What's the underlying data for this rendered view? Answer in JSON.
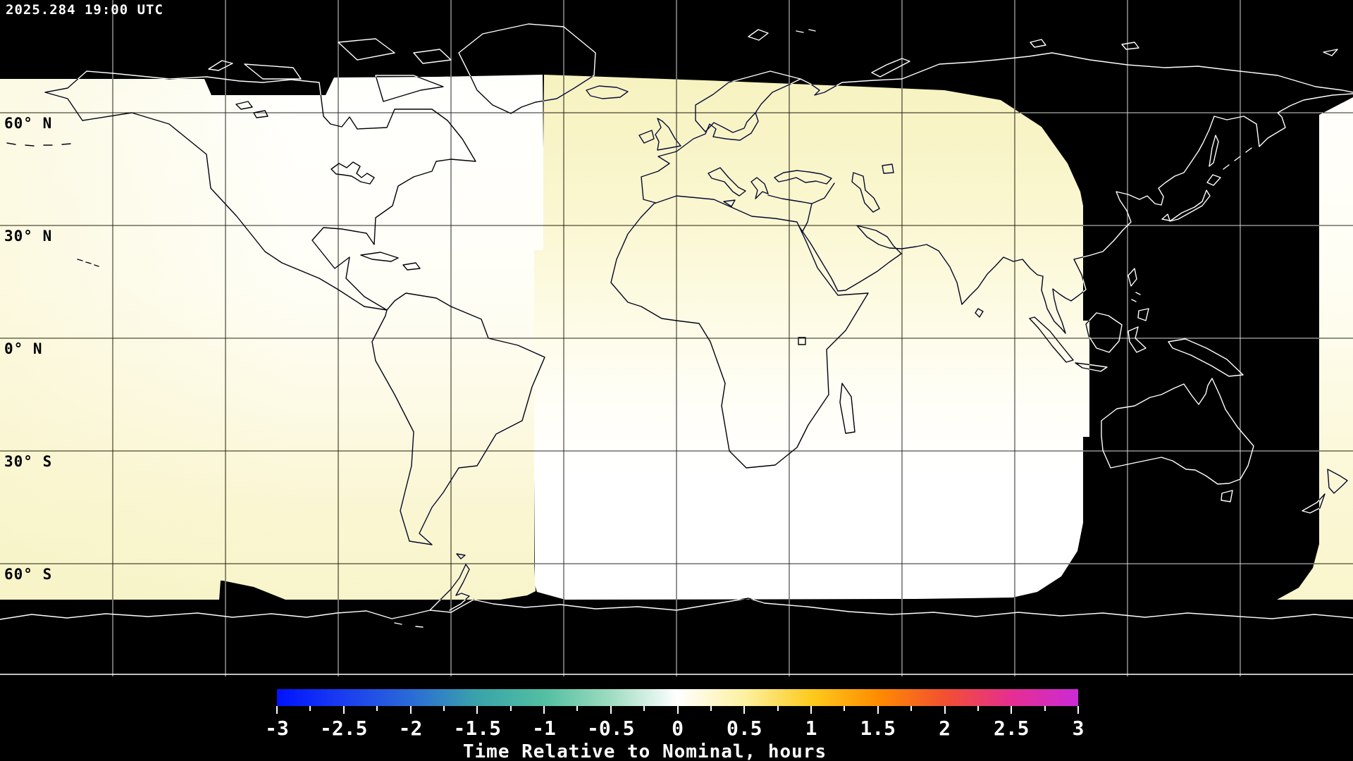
{
  "header": {
    "timestamp": "2025.284 19:00 UTC"
  },
  "map": {
    "latitude_labels": [
      "60° N",
      "30° N",
      "0° N",
      "30° S",
      "60° S"
    ],
    "latitude_values_deg": [
      60,
      30,
      0,
      -30,
      -60
    ],
    "grid_interval_deg": 30,
    "no_data_color": "#000000",
    "nominal_color": "#ffffff",
    "early_swath_tint": "#f7f3c4"
  },
  "colorbar": {
    "title": "Time Relative to Nominal, hours",
    "min": -3,
    "max": 3,
    "tick_labels": [
      "-3",
      "-2.5",
      "-2",
      "-1.5",
      "-1",
      "-0.5",
      "0",
      "0.5",
      "1",
      "1.5",
      "2",
      "2.5",
      "3"
    ],
    "minor_tick_step": 0.25,
    "gradient_stops": [
      "#0013ff",
      "#1b3df0",
      "#2a6ad8",
      "#3aa3aa",
      "#52bfa2",
      "#9fdcc0",
      "#ffffff",
      "#fdf0a0",
      "#fdcb1d",
      "#ff8c00",
      "#f25030",
      "#e62e92",
      "#cb2ad6"
    ]
  }
}
